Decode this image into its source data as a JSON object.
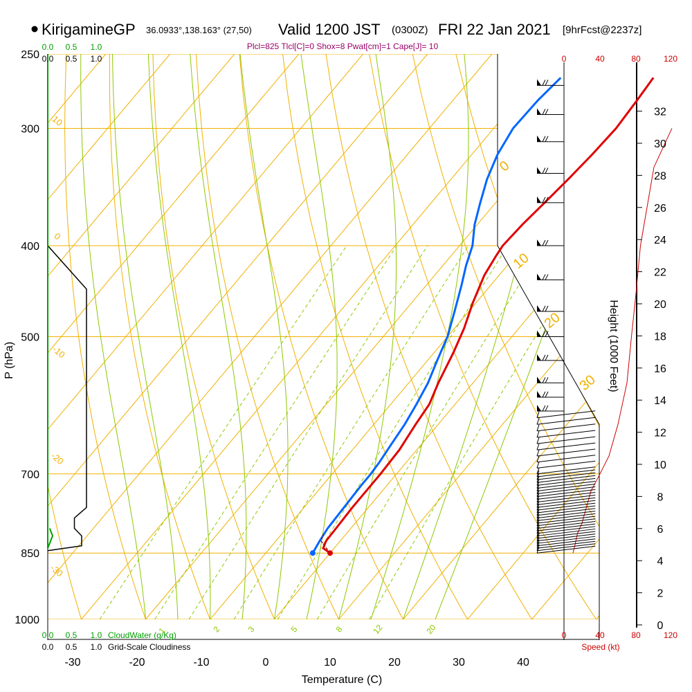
{
  "header": {
    "station": "KirigamineGP",
    "coords": "36.0933°,138.163° (27,50)",
    "valid": "Valid 1200 JST",
    "utc": "(0300Z)",
    "date": "FRI 22 Jan 2021",
    "fcst": "[9hrFcst@2237z]",
    "indices": "Plcl=825 Tlcl[C]=0 Shox=8 Pwat[cm]=1 Cape[J]= 10"
  },
  "colors": {
    "isotherm": "#f0b000",
    "dry_adiabat": "#f0b000",
    "moist_adiabat": "#8cc800",
    "mixing_ratio": "#8cc800",
    "temperature": "#e00000",
    "dewpoint": "#0066ff",
    "cloud_water": "#00a000",
    "cloudiness": "#000000",
    "wind_speed": "#cc0000",
    "indices": "#990066"
  },
  "panels": {
    "cw_scale_top": [
      "0.0",
      "0.5",
      "1.0"
    ],
    "cl_scale_top": [
      "0.0",
      "0.5",
      "1.0"
    ],
    "cw_scale_bottom": [
      "0.0",
      "0.5",
      "1.0"
    ],
    "cw_label": "CloudWater (g/Kg)",
    "cl_scale_bottom": [
      "0.0",
      "0.5",
      "1.0"
    ],
    "cl_label": "Grid-Scale Cloudiness",
    "speed_ticks_top": [
      "0",
      "40",
      "80",
      "120"
    ],
    "speed_ticks_bottom": [
      "0",
      "40",
      "80",
      "120"
    ],
    "speed_label": "Speed (kt)"
  },
  "chart_data": {
    "type": "line",
    "subtype": "skew-T log-P sounding",
    "xlabel": "Temperature (C)",
    "ylabel": "P (hPa)",
    "y2label": "Height (1000 Feet)",
    "xlim": [
      -34,
      44
    ],
    "ylim": [
      1000,
      250
    ],
    "y_scale": "log",
    "x_ticks": [
      -30,
      -20,
      -10,
      0,
      10,
      20,
      30,
      40
    ],
    "y_ticks": [
      1000,
      850,
      700,
      500,
      400,
      300,
      250
    ],
    "height_ticks": [
      0,
      2,
      4,
      6,
      8,
      10,
      12,
      14,
      16,
      18,
      20,
      22,
      24,
      26,
      28,
      30,
      32
    ],
    "dry_adiabat_labels": [
      "10",
      "0",
      "-10",
      "-20",
      "-30"
    ],
    "moist_adiabat_labels": [
      "0",
      "10",
      "20",
      "30"
    ],
    "mixing_ratio_labels": [
      "1",
      "2",
      "3",
      "5",
      "8",
      "12",
      "20"
    ],
    "series": [
      {
        "name": "Temperature",
        "points": [
          [
            10,
            850
          ],
          [
            8.3,
            840
          ],
          [
            7.8,
            825
          ],
          [
            7.7,
            800
          ],
          [
            7.5,
            760
          ],
          [
            7.5,
            700
          ],
          [
            7.3,
            660
          ],
          [
            6.5,
            620
          ],
          [
            6.0,
            590
          ],
          [
            4.6,
            560
          ],
          [
            3.0,
            520
          ],
          [
            1.5,
            490
          ],
          [
            -0.5,
            460
          ],
          [
            -2.3,
            430
          ],
          [
            -3.0,
            410
          ],
          [
            -3.3,
            400
          ],
          [
            -3.0,
            380
          ],
          [
            -2.4,
            360
          ],
          [
            -1.8,
            340
          ],
          [
            -1.3,
            320
          ],
          [
            -1.0,
            300
          ],
          [
            -1.4,
            280
          ],
          [
            -1.8,
            265
          ]
        ]
      },
      {
        "name": "Dewpoint",
        "points": [
          [
            7.3,
            850
          ],
          [
            6.8,
            825
          ],
          [
            6.4,
            800
          ],
          [
            6.2,
            760
          ],
          [
            6.0,
            720
          ],
          [
            6.0,
            700
          ],
          [
            5.8,
            680
          ],
          [
            5.3,
            650
          ],
          [
            4.8,
            620
          ],
          [
            4.0,
            590
          ],
          [
            3.0,
            560
          ],
          [
            1.5,
            530
          ],
          [
            0,
            500
          ],
          [
            -2.2,
            470
          ],
          [
            -4.6,
            440
          ],
          [
            -6.4,
            420
          ],
          [
            -8,
            400
          ],
          [
            -10.4,
            380
          ],
          [
            -12.4,
            360
          ],
          [
            -14.4,
            340
          ],
          [
            -16.0,
            320
          ],
          [
            -17.0,
            300
          ],
          [
            -16.8,
            280
          ],
          [
            -16.2,
            265
          ]
        ]
      }
    ],
    "cloud_water_g_per_kg": [
      [
        0,
        250
      ],
      [
        0,
        840
      ],
      [
        0.05,
        815
      ],
      [
        0.02,
        800
      ]
    ],
    "grid_scale_cloudiness": [
      [
        0.0,
        400
      ],
      [
        0.8,
        445
      ],
      [
        0.8,
        760
      ],
      [
        0.55,
        780
      ],
      [
        0.55,
        800
      ],
      [
        0.7,
        815
      ],
      [
        0.7,
        835
      ],
      [
        0.0,
        845
      ]
    ],
    "wind_speed_kt": [
      [
        10,
        850
      ],
      [
        12,
        835
      ],
      [
        15,
        810
      ],
      [
        20,
        790
      ],
      [
        30,
        730
      ],
      [
        40,
        700
      ],
      [
        50,
        670
      ],
      [
        60,
        620
      ],
      [
        70,
        560
      ],
      [
        75,
        500
      ],
      [
        80,
        450
      ],
      [
        85,
        400
      ],
      [
        100,
        330
      ],
      [
        120,
        300
      ]
    ],
    "wind_barb_levels_hpa": [
      850,
      845,
      840,
      835,
      830,
      825,
      820,
      815,
      810,
      805,
      800,
      795,
      790,
      785,
      780,
      775,
      770,
      765,
      760,
      755,
      750,
      745,
      740,
      735,
      730,
      725,
      720,
      715,
      710,
      705,
      700,
      690,
      680,
      670,
      660,
      650,
      640,
      630,
      620,
      610,
      600,
      580,
      560,
      530,
      500,
      470,
      435,
      400,
      360,
      335,
      310,
      290,
      270
    ]
  }
}
